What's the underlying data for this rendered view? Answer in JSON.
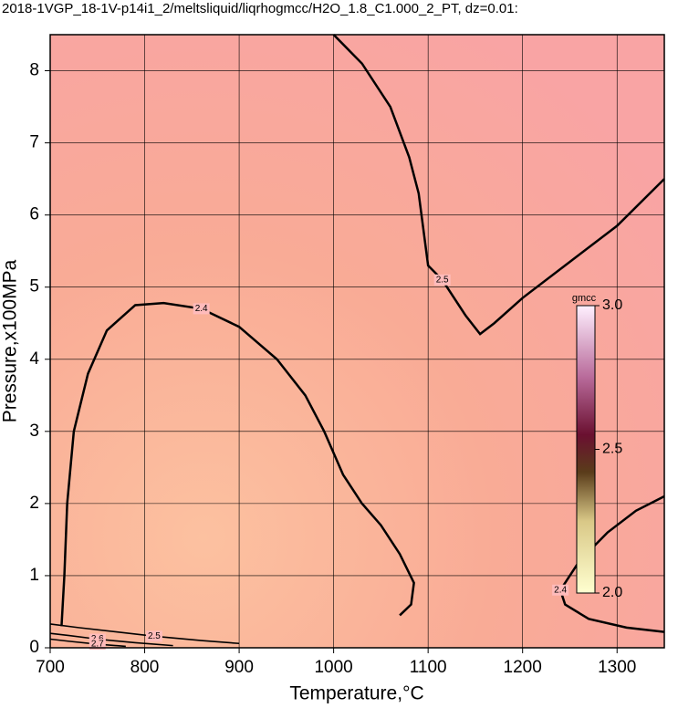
{
  "chart_data": {
    "type": "contour",
    "title": "2018-1VGP_18-1V-p14i1_2/meltsliquid/liqrhogmcc/H2O_1.8_C1.000_2_PT, dz=0.01:",
    "x_label": "Temperature,°C",
    "y_label": "Pressure,x100MPa",
    "xlim": [
      700,
      1350
    ],
    "ylim": [
      0,
      8.5
    ],
    "xticks": [
      700,
      800,
      900,
      1000,
      1100,
      1200,
      1300
    ],
    "yticks": [
      0,
      1,
      2,
      3,
      4,
      5,
      6,
      7,
      8
    ],
    "grid": true,
    "colorbar": {
      "label": "gmcc",
      "clim": [
        2.0,
        3.0
      ],
      "ticks": [
        {
          "value": 2.0,
          "label": "2.0"
        },
        2.5,
        {
          "value": 3.0,
          "label": "3.0"
        }
      ]
    },
    "contours": [
      {
        "level": 2.5,
        "x": [
          1000,
          1030,
          1060,
          1080,
          1090,
          1095,
          1100,
          1115,
          1140,
          1155,
          1170,
          1200,
          1250,
          1300,
          1350
        ],
        "y": [
          8.5,
          8.1,
          7.5,
          6.8,
          6.3,
          5.8,
          5.3,
          5.1,
          4.6,
          4.35,
          4.5,
          4.85,
          5.35,
          5.85,
          6.5
        ]
      },
      {
        "level": 2.4,
        "x": [
          712,
          715,
          718,
          725,
          740,
          760,
          790,
          820,
          860,
          900,
          940,
          970,
          990,
          1010,
          1030,
          1050,
          1070,
          1085,
          1082,
          1070
        ],
        "y": [
          0.3,
          1,
          2,
          3,
          3.8,
          4.4,
          4.75,
          4.78,
          4.7,
          4.45,
          4.0,
          3.5,
          3.0,
          2.4,
          2.0,
          1.7,
          1.3,
          0.9,
          0.6,
          0.45
        ]
      },
      {
        "level": 2.4,
        "x": [
          1350,
          1320,
          1290,
          1260,
          1240,
          1245,
          1270,
          1310,
          1350
        ],
        "y": [
          2.1,
          1.9,
          1.6,
          1.2,
          0.8,
          0.6,
          0.4,
          0.28,
          0.22
        ]
      },
      {
        "level": 2.5,
        "x": [
          700,
          730,
          770,
          810,
          860,
          900
        ],
        "y": [
          0.33,
          0.28,
          0.22,
          0.16,
          0.1,
          0.06
        ]
      },
      {
        "level": 2.6,
        "x": [
          700,
          720,
          750,
          790,
          830
        ],
        "y": [
          0.2,
          0.17,
          0.12,
          0.07,
          0.03
        ]
      },
      {
        "level": 2.7,
        "x": [
          700,
          720,
          750,
          780
        ],
        "y": [
          0.12,
          0.09,
          0.05,
          0.02
        ]
      }
    ]
  }
}
